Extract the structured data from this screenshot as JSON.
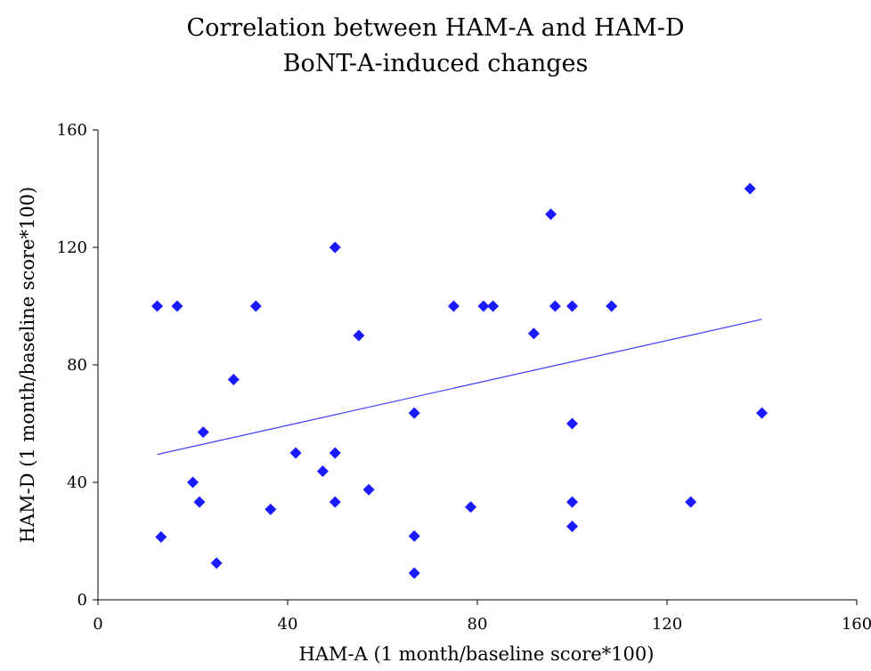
{
  "colors": {
    "marker": "#1a1aff",
    "trendline": "#3b3bff",
    "axis": "#000000"
  },
  "chart_data": {
    "type": "scatter",
    "title": [
      "Correlation between HAM-A and HAM-D",
      "BoNT-A-induced changes"
    ],
    "xlabel": "HAM-A (1 month/baseline score*100)",
    "ylabel": "HAM-D (1 month/baseline score*100)",
    "xlim": [
      0,
      160
    ],
    "ylim": [
      0,
      160
    ],
    "xticks": [
      0,
      40,
      80,
      120,
      160
    ],
    "yticks": [
      0,
      40,
      80,
      120,
      160
    ],
    "x_tick_labels": [
      "0",
      "40",
      "80",
      "120",
      "160"
    ],
    "y_tick_labels": [
      "0",
      "40",
      "80",
      "120",
      "160"
    ],
    "grid": false,
    "marker": "diamond",
    "series": [
      {
        "points": [
          [
            12.5,
            100
          ],
          [
            13.3,
            21.4
          ],
          [
            16.7,
            100
          ],
          [
            20,
            40
          ],
          [
            21.4,
            33.3
          ],
          [
            22.2,
            57.1
          ],
          [
            25,
            12.5
          ],
          [
            28.6,
            75
          ],
          [
            33.3,
            100
          ],
          [
            36.4,
            30.8
          ],
          [
            41.7,
            50
          ],
          [
            47.4,
            43.8
          ],
          [
            50,
            120
          ],
          [
            50,
            50
          ],
          [
            50,
            33.3
          ],
          [
            55,
            90
          ],
          [
            57.1,
            37.5
          ],
          [
            66.7,
            63.6
          ],
          [
            66.7,
            21.7
          ],
          [
            66.7,
            9.1
          ],
          [
            75,
            100
          ],
          [
            78.6,
            31.6
          ],
          [
            81.3,
            100
          ],
          [
            83.3,
            100
          ],
          [
            91.9,
            90.7
          ],
          [
            95.5,
            131.3
          ],
          [
            96.4,
            100
          ],
          [
            100,
            100
          ],
          [
            100,
            60
          ],
          [
            100,
            33.3
          ],
          [
            100,
            25
          ],
          [
            108.3,
            100
          ],
          [
            125,
            33.3
          ],
          [
            137.5,
            140
          ],
          [
            140,
            63.6
          ]
        ]
      }
    ],
    "trendline": {
      "x": [
        12.5,
        140
      ],
      "y": [
        49.5,
        95.5
      ]
    }
  }
}
